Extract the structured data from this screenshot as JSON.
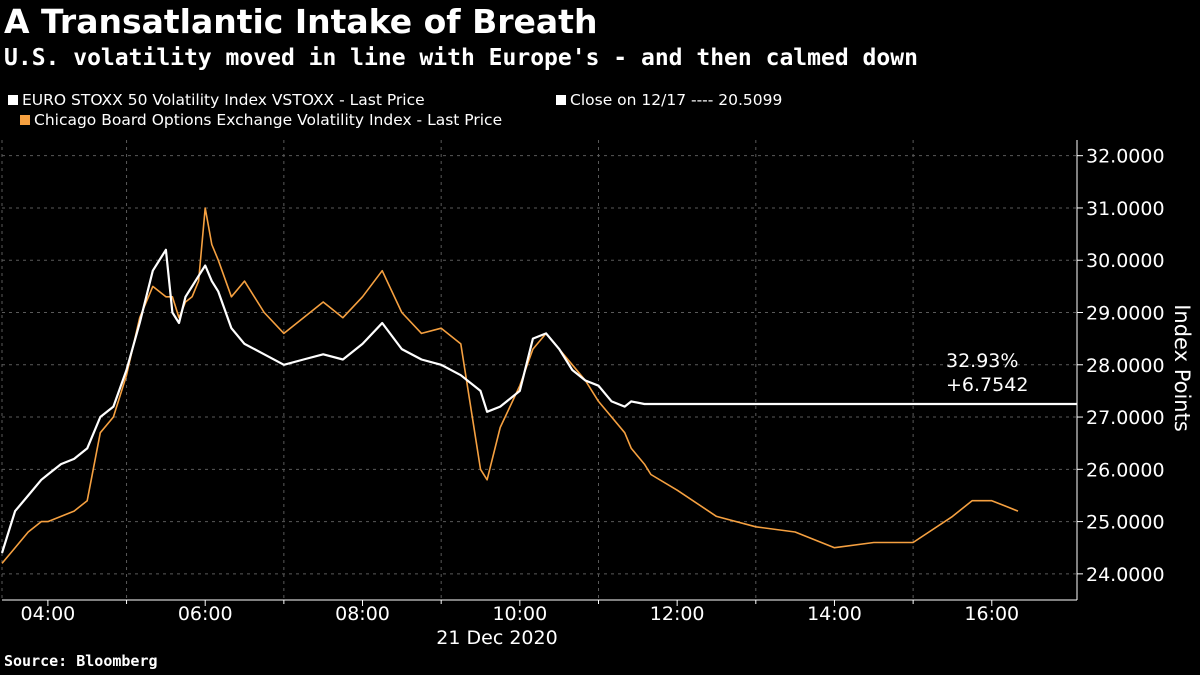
{
  "title": "A Transatlantic Intake of Breath",
  "subtitle": "U.S. volatility moved in line with Europe's - and then calmed down",
  "source": "Source: Bloomberg",
  "colors": {
    "background": "#000000",
    "euro": "#ffffff",
    "us": "#f5a040",
    "grid": "#5a5a5a"
  },
  "legend": {
    "euro": "EURO STOXX 50 Volatility Index VSTOXX - Last Price",
    "close": "Close on 12/17 ---- 20.5099",
    "us": "Chicago Board Options Exchange Volatility Index - Last Price"
  },
  "annotation": {
    "pct": "32.93%",
    "change": "+6.7542"
  },
  "chart_data": {
    "type": "line",
    "title": "A Transatlantic Intake of Breath",
    "subtitle": "U.S. volatility moved in line with Europe's - and then calmed down",
    "xlabel": "21 Dec 2020",
    "ylabel": "Index Points",
    "x_ticks": [
      "04:00",
      "06:00",
      "08:00",
      "10:00",
      "12:00",
      "14:00",
      "16:00"
    ],
    "y_ticks": [
      "24.0000",
      "25.0000",
      "26.0000",
      "27.0000",
      "28.0000",
      "29.0000",
      "30.0000",
      "31.0000",
      "32.0000"
    ],
    "xlim": [
      "03:25",
      "17:05"
    ],
    "ylim": [
      23.5,
      32.3
    ],
    "grid": true,
    "legend_position": "top-left",
    "series": [
      {
        "name": "EURO STOXX 50 Volatility Index VSTOXX - Last Price",
        "color": "#ffffff",
        "x": [
          "03:25",
          "03:35",
          "03:45",
          "03:55",
          "04:00",
          "04:10",
          "04:20",
          "04:30",
          "04:40",
          "04:50",
          "05:00",
          "05:10",
          "05:20",
          "05:30",
          "05:35",
          "05:40",
          "05:45",
          "05:50",
          "05:55",
          "06:00",
          "06:05",
          "06:10",
          "06:20",
          "06:30",
          "06:45",
          "07:00",
          "07:15",
          "07:30",
          "07:45",
          "08:00",
          "08:15",
          "08:30",
          "08:45",
          "09:00",
          "09:15",
          "09:30",
          "09:35",
          "09:45",
          "10:00",
          "10:10",
          "10:20",
          "10:30",
          "10:40",
          "10:50",
          "11:00",
          "11:10",
          "11:20",
          "11:25",
          "11:35",
          "11:40",
          "12:00",
          "13:00",
          "14:00",
          "15:00",
          "16:00",
          "16:30",
          "17:05"
        ],
        "y": [
          24.4,
          25.2,
          25.5,
          25.8,
          25.9,
          26.1,
          26.2,
          26.4,
          27.0,
          27.2,
          27.9,
          28.8,
          29.8,
          30.2,
          29.0,
          28.8,
          29.3,
          29.5,
          29.7,
          29.9,
          29.6,
          29.4,
          28.7,
          28.4,
          28.2,
          28.0,
          28.1,
          28.2,
          28.1,
          28.4,
          28.8,
          28.3,
          28.1,
          28.0,
          27.8,
          27.5,
          27.1,
          27.2,
          27.5,
          28.5,
          28.6,
          28.3,
          27.9,
          27.7,
          27.6,
          27.3,
          27.2,
          27.3,
          27.25,
          27.25,
          27.25,
          27.25,
          27.25,
          27.25,
          27.25,
          27.25,
          27.25
        ]
      },
      {
        "name": "Chicago Board Options Exchange Volatility Index - Last Price",
        "color": "#f5a040",
        "x": [
          "03:25",
          "03:35",
          "03:45",
          "03:55",
          "04:00",
          "04:10",
          "04:20",
          "04:30",
          "04:40",
          "04:50",
          "05:00",
          "05:10",
          "05:20",
          "05:30",
          "05:35",
          "05:40",
          "05:45",
          "05:50",
          "05:55",
          "06:00",
          "06:05",
          "06:10",
          "06:20",
          "06:30",
          "06:45",
          "07:00",
          "07:15",
          "07:30",
          "07:45",
          "08:00",
          "08:15",
          "08:30",
          "08:45",
          "09:00",
          "09:15",
          "09:30",
          "09:35",
          "09:45",
          "10:00",
          "10:10",
          "10:20",
          "10:30",
          "10:40",
          "10:50",
          "11:00",
          "11:10",
          "11:20",
          "11:25",
          "11:35",
          "11:40",
          "12:00",
          "12:30",
          "13:00",
          "13:30",
          "14:00",
          "14:30",
          "15:00",
          "15:30",
          "15:45",
          "16:00",
          "16:10",
          "16:20"
        ],
        "y": [
          24.2,
          24.5,
          24.8,
          25.0,
          25.0,
          25.1,
          25.2,
          25.4,
          26.7,
          27.0,
          27.8,
          28.9,
          29.5,
          29.3,
          29.3,
          28.9,
          29.2,
          29.3,
          29.6,
          31.0,
          30.3,
          30.0,
          29.3,
          29.6,
          29.0,
          28.6,
          28.9,
          29.2,
          28.9,
          29.3,
          29.8,
          29.0,
          28.6,
          28.7,
          28.4,
          26.0,
          25.8,
          26.8,
          27.6,
          28.3,
          28.6,
          28.3,
          28.0,
          27.7,
          27.3,
          27.0,
          26.7,
          26.4,
          26.1,
          25.9,
          25.6,
          25.1,
          24.9,
          24.8,
          24.5,
          24.6,
          24.6,
          25.1,
          25.4,
          25.4,
          25.3,
          25.2
        ]
      }
    ]
  }
}
